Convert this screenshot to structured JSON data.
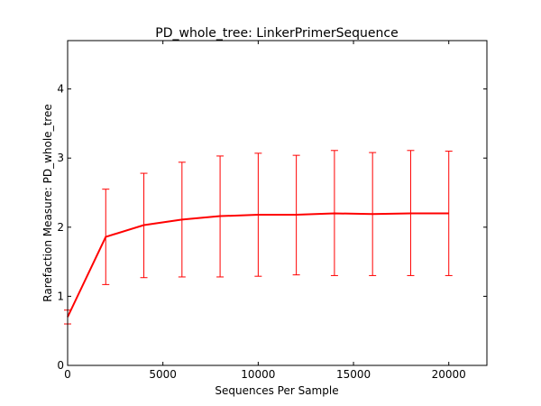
{
  "chart_data": {
    "type": "line",
    "title": "PD_whole_tree: LinkerPrimerSequence",
    "xlabel": "Sequences Per Sample",
    "ylabel": "Rarefaction Measure: PD_whole_tree",
    "xlim": [
      0,
      22000
    ],
    "ylim": [
      0,
      4.7
    ],
    "xticks": [
      0,
      5000,
      10000,
      15000,
      20000
    ],
    "yticks": [
      0,
      1,
      2,
      3,
      4
    ],
    "grid": false,
    "series": [
      {
        "color": "#ff0000",
        "x": [
          0,
          2000,
          4000,
          6000,
          8000,
          10000,
          12000,
          14000,
          16000,
          18000,
          20000
        ],
        "y": [
          0.7,
          1.86,
          2.03,
          2.11,
          2.16,
          2.18,
          2.18,
          2.2,
          2.19,
          2.2,
          2.2
        ],
        "err_low": [
          0.6,
          1.17,
          1.27,
          1.28,
          1.28,
          1.29,
          1.31,
          1.3,
          1.3,
          1.3,
          1.3
        ],
        "err_high": [
          0.8,
          2.55,
          2.78,
          2.94,
          3.03,
          3.07,
          3.04,
          3.11,
          3.08,
          3.11,
          3.1
        ]
      }
    ]
  }
}
